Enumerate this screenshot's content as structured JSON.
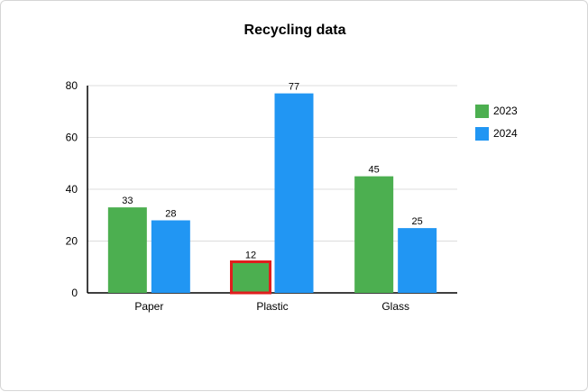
{
  "chart_data": {
    "type": "bar",
    "title": "Recycling data",
    "categories": [
      "Paper",
      "Plastic",
      "Glass"
    ],
    "series": [
      {
        "name": "2023",
        "color": "#4caf50",
        "values": [
          33,
          12,
          45
        ]
      },
      {
        "name": "2024",
        "color": "#2196f3",
        "values": [
          28,
          77,
          25
        ]
      }
    ],
    "ylim": [
      0,
      80
    ],
    "yticks": [
      0,
      20,
      40,
      60,
      80
    ],
    "xlabel": "",
    "ylabel": "",
    "grid": true,
    "legend": "right",
    "highlight": {
      "series": 0,
      "category": 1,
      "color": "#e01e1e"
    }
  }
}
